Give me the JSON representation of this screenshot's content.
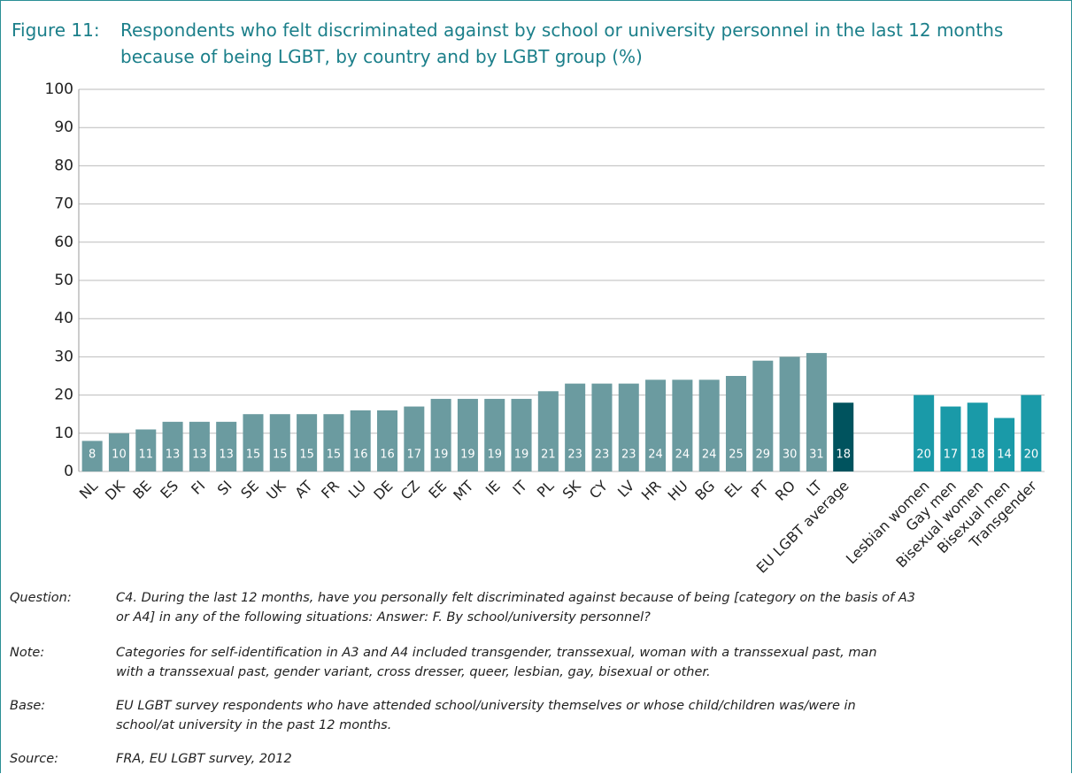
{
  "chart_data": {
    "type": "bar",
    "figure_label": "Figure 11:",
    "title_lines": [
      "Respondents who felt discriminated against by school or university personnel in the last 12 months",
      "because of being LGBT, by country and by LGBT group (%)"
    ],
    "categories": [
      "NL",
      "DK",
      "BE",
      "ES",
      "FI",
      "SI",
      "SE",
      "UK",
      "AT",
      "FR",
      "LU",
      "DE",
      "CZ",
      "EE",
      "MT",
      "IE",
      "IT",
      "PL",
      "SK",
      "CY",
      "LV",
      "HR",
      "HU",
      "BG",
      "EL",
      "PT",
      "RO",
      "LT",
      "EU LGBT average",
      null,
      null,
      "Lesbian women",
      "Gay men",
      "Bisexual women",
      "Bisexual men",
      "Transgender"
    ],
    "values": [
      8,
      10,
      11,
      13,
      13,
      13,
      15,
      15,
      15,
      15,
      16,
      16,
      17,
      19,
      19,
      19,
      19,
      21,
      23,
      23,
      23,
      24,
      24,
      24,
      25,
      29,
      30,
      31,
      18,
      null,
      null,
      20,
      17,
      18,
      14,
      20
    ],
    "colors": [
      "#6b9ba0",
      "#6b9ba0",
      "#6b9ba0",
      "#6b9ba0",
      "#6b9ba0",
      "#6b9ba0",
      "#6b9ba0",
      "#6b9ba0",
      "#6b9ba0",
      "#6b9ba0",
      "#6b9ba0",
      "#6b9ba0",
      "#6b9ba0",
      "#6b9ba0",
      "#6b9ba0",
      "#6b9ba0",
      "#6b9ba0",
      "#6b9ba0",
      "#6b9ba0",
      "#6b9ba0",
      "#6b9ba0",
      "#6b9ba0",
      "#6b9ba0",
      "#6b9ba0",
      "#6b9ba0",
      "#6b9ba0",
      "#6b9ba0",
      "#6b9ba0",
      "#00535e",
      null,
      null,
      "#1a9aa8",
      "#1a9aa8",
      "#1a9aa8",
      "#1a9aa8",
      "#1a9aa8"
    ],
    "ylim": [
      0,
      100
    ],
    "yticks": [
      0,
      10,
      20,
      30,
      40,
      50,
      60,
      70,
      80,
      90,
      100
    ],
    "grid": true,
    "notes": [
      {
        "label": "Question:",
        "lines": [
          "C4. During the last 12 months, have you personally felt discriminated against because of being [category on the basis of A3",
          "or A4] in any of the following situations: Answer: F. By school/university personnel?"
        ]
      },
      {
        "label": "Note:",
        "lines": [
          "Categories for self-identification in A3 and A4 included transgender, transsexual, woman with a transsexual past, man",
          "with a transsexual past, gender variant, cross dresser, queer, lesbian, gay, bisexual or other."
        ]
      },
      {
        "label": "Base:",
        "lines": [
          "EU LGBT survey respondents who have attended school/university themselves or whose child/children was/were in",
          "school/at university in the past 12 months."
        ]
      },
      {
        "label": "Source:",
        "lines": [
          "FRA, EU LGBT survey, 2012"
        ]
      }
    ]
  }
}
